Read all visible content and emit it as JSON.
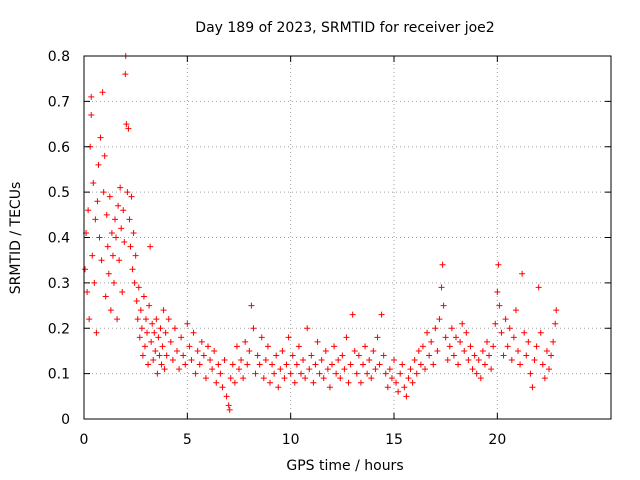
{
  "chart_data": {
    "type": "scatter",
    "title": "Day 189 of 2023, SRMTID for receiver joe2",
    "xlabel": "GPS time / hours",
    "ylabel": "SRMTID / TECUs",
    "xlim": [
      0,
      25.5
    ],
    "ylim": [
      0,
      0.8
    ],
    "xticks": [
      0,
      5,
      10,
      15,
      20
    ],
    "xtick_labels": [
      "0",
      "5",
      "10",
      "15",
      "20"
    ],
    "yticks": [
      0,
      0.1,
      0.2,
      0.3,
      0.4,
      0.5,
      0.6,
      0.7,
      0.8
    ],
    "ytick_labels": [
      "0",
      "0.1",
      "0.2",
      "0.3",
      "0.4",
      "0.5",
      "0.6",
      "0.7",
      "0.8"
    ],
    "grid": true,
    "marker": "+",
    "marker_color": "#ff0000",
    "series": [
      {
        "name": "SRMTID",
        "points": [
          [
            0.05,
            0.33
          ],
          [
            0.1,
            0.41
          ],
          [
            0.15,
            0.28
          ],
          [
            0.2,
            0.46
          ],
          [
            0.25,
            0.22
          ],
          [
            0.3,
            0.6
          ],
          [
            0.35,
            0.67
          ],
          [
            0.35,
            0.71
          ],
          [
            0.4,
            0.36
          ],
          [
            0.45,
            0.52
          ],
          [
            0.5,
            0.3
          ],
          [
            0.55,
            0.44
          ],
          [
            0.6,
            0.19
          ],
          [
            0.65,
            0.48
          ],
          [
            0.7,
            0.56
          ],
          [
            0.75,
            0.4
          ],
          [
            0.8,
            0.62
          ],
          [
            0.85,
            0.35
          ],
          [
            0.9,
            0.72
          ],
          [
            0.95,
            0.5
          ],
          [
            1.0,
            0.58
          ],
          [
            1.05,
            0.27
          ],
          [
            1.1,
            0.45
          ],
          [
            1.15,
            0.38
          ],
          [
            1.2,
            0.32
          ],
          [
            1.25,
            0.49
          ],
          [
            1.3,
            0.24
          ],
          [
            1.35,
            0.41
          ],
          [
            1.4,
            0.36
          ],
          [
            1.45,
            0.3
          ],
          [
            1.5,
            0.44
          ],
          [
            1.55,
            0.4
          ],
          [
            1.6,
            0.22
          ],
          [
            1.65,
            0.47
          ],
          [
            1.7,
            0.35
          ],
          [
            1.75,
            0.51
          ],
          [
            1.8,
            0.42
          ],
          [
            1.85,
            0.28
          ],
          [
            1.9,
            0.46
          ],
          [
            1.95,
            0.39
          ],
          [
            2.0,
            0.76
          ],
          [
            2.02,
            0.8
          ],
          [
            2.05,
            0.65
          ],
          [
            2.1,
            0.5
          ],
          [
            2.15,
            0.64
          ],
          [
            2.2,
            0.44
          ],
          [
            2.25,
            0.38
          ],
          [
            2.3,
            0.49
          ],
          [
            2.35,
            0.33
          ],
          [
            2.4,
            0.41
          ],
          [
            2.45,
            0.3
          ],
          [
            2.5,
            0.36
          ],
          [
            2.55,
            0.26
          ],
          [
            2.6,
            0.22
          ],
          [
            2.65,
            0.29
          ],
          [
            2.7,
            0.18
          ],
          [
            2.75,
            0.24
          ],
          [
            2.8,
            0.2
          ],
          [
            2.85,
            0.14
          ],
          [
            2.9,
            0.27
          ],
          [
            2.95,
            0.16
          ],
          [
            3.0,
            0.22
          ],
          [
            3.05,
            0.19
          ],
          [
            3.1,
            0.12
          ],
          [
            3.15,
            0.25
          ],
          [
            3.2,
            0.38
          ],
          [
            3.25,
            0.17
          ],
          [
            3.3,
            0.21
          ],
          [
            3.35,
            0.13
          ],
          [
            3.4,
            0.19
          ],
          [
            3.45,
            0.15
          ],
          [
            3.5,
            0.22
          ],
          [
            3.55,
            0.1
          ],
          [
            3.6,
            0.18
          ],
          [
            3.65,
            0.14
          ],
          [
            3.7,
            0.2
          ],
          [
            3.75,
            0.12
          ],
          [
            3.8,
            0.16
          ],
          [
            3.85,
            0.24
          ],
          [
            3.9,
            0.11
          ],
          [
            3.95,
            0.19
          ],
          [
            4.0,
            0.14
          ],
          [
            4.1,
            0.22
          ],
          [
            4.2,
            0.17
          ],
          [
            4.3,
            0.13
          ],
          [
            4.4,
            0.2
          ],
          [
            4.5,
            0.15
          ],
          [
            4.6,
            0.11
          ],
          [
            4.7,
            0.18
          ],
          [
            4.8,
            0.14
          ],
          [
            4.9,
            0.12
          ],
          [
            5.0,
            0.21
          ],
          [
            5.1,
            0.16
          ],
          [
            5.2,
            0.13
          ],
          [
            5.3,
            0.19
          ],
          [
            5.4,
            0.1
          ],
          [
            5.5,
            0.15
          ],
          [
            5.6,
            0.12
          ],
          [
            5.7,
            0.17
          ],
          [
            5.8,
            0.14
          ],
          [
            5.9,
            0.09
          ],
          [
            6.0,
            0.16
          ],
          [
            6.1,
            0.13
          ],
          [
            6.2,
            0.11
          ],
          [
            6.3,
            0.15
          ],
          [
            6.4,
            0.08
          ],
          [
            6.5,
            0.12
          ],
          [
            6.6,
            0.1
          ],
          [
            6.7,
            0.07
          ],
          [
            6.8,
            0.13
          ],
          [
            6.9,
            0.05
          ],
          [
            7.0,
            0.03
          ],
          [
            7.05,
            0.02
          ],
          [
            7.1,
            0.09
          ],
          [
            7.2,
            0.12
          ],
          [
            7.3,
            0.08
          ],
          [
            7.4,
            0.16
          ],
          [
            7.5,
            0.11
          ],
          [
            7.6,
            0.13
          ],
          [
            7.7,
            0.09
          ],
          [
            7.8,
            0.17
          ],
          [
            7.9,
            0.12
          ],
          [
            8.0,
            0.15
          ],
          [
            8.1,
            0.25
          ],
          [
            8.2,
            0.2
          ],
          [
            8.3,
            0.1
          ],
          [
            8.4,
            0.14
          ],
          [
            8.5,
            0.12
          ],
          [
            8.6,
            0.18
          ],
          [
            8.7,
            0.09
          ],
          [
            8.8,
            0.13
          ],
          [
            8.9,
            0.16
          ],
          [
            9.0,
            0.08
          ],
          [
            9.1,
            0.12
          ],
          [
            9.2,
            0.1
          ],
          [
            9.3,
            0.14
          ],
          [
            9.4,
            0.07
          ],
          [
            9.5,
            0.11
          ],
          [
            9.6,
            0.15
          ],
          [
            9.7,
            0.09
          ],
          [
            9.8,
            0.12
          ],
          [
            9.9,
            0.18
          ],
          [
            10.0,
            0.1
          ],
          [
            10.1,
            0.14
          ],
          [
            10.2,
            0.08
          ],
          [
            10.3,
            0.12
          ],
          [
            10.4,
            0.16
          ],
          [
            10.5,
            0.1
          ],
          [
            10.6,
            0.13
          ],
          [
            10.7,
            0.09
          ],
          [
            10.8,
            0.2
          ],
          [
            10.9,
            0.11
          ],
          [
            11.0,
            0.14
          ],
          [
            11.1,
            0.08
          ],
          [
            11.2,
            0.12
          ],
          [
            11.3,
            0.17
          ],
          [
            11.4,
            0.1
          ],
          [
            11.5,
            0.13
          ],
          [
            11.6,
            0.09
          ],
          [
            11.7,
            0.15
          ],
          [
            11.8,
            0.11
          ],
          [
            11.9,
            0.07
          ],
          [
            12.0,
            0.12
          ],
          [
            12.1,
            0.16
          ],
          [
            12.2,
            0.1
          ],
          [
            12.3,
            0.13
          ],
          [
            12.4,
            0.09
          ],
          [
            12.5,
            0.14
          ],
          [
            12.6,
            0.11
          ],
          [
            12.7,
            0.18
          ],
          [
            12.8,
            0.08
          ],
          [
            12.9,
            0.12
          ],
          [
            13.0,
            0.23
          ],
          [
            13.1,
            0.15
          ],
          [
            13.2,
            0.1
          ],
          [
            13.3,
            0.14
          ],
          [
            13.4,
            0.08
          ],
          [
            13.5,
            0.12
          ],
          [
            13.6,
            0.16
          ],
          [
            13.7,
            0.1
          ],
          [
            13.8,
            0.13
          ],
          [
            13.9,
            0.09
          ],
          [
            14.0,
            0.15
          ],
          [
            14.1,
            0.11
          ],
          [
            14.2,
            0.18
          ],
          [
            14.3,
            0.12
          ],
          [
            14.4,
            0.23
          ],
          [
            14.5,
            0.14
          ],
          [
            14.6,
            0.1
          ],
          [
            14.7,
            0.07
          ],
          [
            14.8,
            0.11
          ],
          [
            14.9,
            0.09
          ],
          [
            15.0,
            0.13
          ],
          [
            15.1,
            0.08
          ],
          [
            15.2,
            0.06
          ],
          [
            15.3,
            0.1
          ],
          [
            15.4,
            0.12
          ],
          [
            15.5,
            0.07
          ],
          [
            15.6,
            0.05
          ],
          [
            15.7,
            0.09
          ],
          [
            15.8,
            0.11
          ],
          [
            15.9,
            0.08
          ],
          [
            16.0,
            0.13
          ],
          [
            16.1,
            0.1
          ],
          [
            16.2,
            0.15
          ],
          [
            16.3,
            0.12
          ],
          [
            16.4,
            0.16
          ],
          [
            16.5,
            0.11
          ],
          [
            16.6,
            0.19
          ],
          [
            16.7,
            0.14
          ],
          [
            16.8,
            0.17
          ],
          [
            16.9,
            0.12
          ],
          [
            17.0,
            0.2
          ],
          [
            17.1,
            0.15
          ],
          [
            17.2,
            0.22
          ],
          [
            17.3,
            0.29
          ],
          [
            17.35,
            0.34
          ],
          [
            17.4,
            0.25
          ],
          [
            17.5,
            0.18
          ],
          [
            17.6,
            0.13
          ],
          [
            17.7,
            0.16
          ],
          [
            17.8,
            0.2
          ],
          [
            17.9,
            0.14
          ],
          [
            18.0,
            0.18
          ],
          [
            18.1,
            0.12
          ],
          [
            18.2,
            0.17
          ],
          [
            18.3,
            0.21
          ],
          [
            18.4,
            0.15
          ],
          [
            18.5,
            0.19
          ],
          [
            18.6,
            0.13
          ],
          [
            18.7,
            0.16
          ],
          [
            18.8,
            0.11
          ],
          [
            18.9,
            0.14
          ],
          [
            19.0,
            0.1
          ],
          [
            19.1,
            0.13
          ],
          [
            19.2,
            0.09
          ],
          [
            19.3,
            0.15
          ],
          [
            19.4,
            0.12
          ],
          [
            19.5,
            0.17
          ],
          [
            19.6,
            0.14
          ],
          [
            19.7,
            0.11
          ],
          [
            19.8,
            0.16
          ],
          [
            19.9,
            0.21
          ],
          [
            20.0,
            0.28
          ],
          [
            20.05,
            0.34
          ],
          [
            20.1,
            0.25
          ],
          [
            20.2,
            0.19
          ],
          [
            20.3,
            0.14
          ],
          [
            20.4,
            0.22
          ],
          [
            20.5,
            0.16
          ],
          [
            20.6,
            0.2
          ],
          [
            20.7,
            0.13
          ],
          [
            20.8,
            0.18
          ],
          [
            20.9,
            0.24
          ],
          [
            21.0,
            0.15
          ],
          [
            21.1,
            0.12
          ],
          [
            21.2,
            0.32
          ],
          [
            21.3,
            0.19
          ],
          [
            21.4,
            0.14
          ],
          [
            21.5,
            0.17
          ],
          [
            21.6,
            0.1
          ],
          [
            21.7,
            0.07
          ],
          [
            21.8,
            0.13
          ],
          [
            21.9,
            0.16
          ],
          [
            22.0,
            0.29
          ],
          [
            22.1,
            0.19
          ],
          [
            22.2,
            0.12
          ],
          [
            22.3,
            0.09
          ],
          [
            22.4,
            0.15
          ],
          [
            22.5,
            0.11
          ],
          [
            22.6,
            0.14
          ],
          [
            22.7,
            0.17
          ],
          [
            22.8,
            0.21
          ],
          [
            22.85,
            0.24
          ]
        ]
      }
    ]
  }
}
